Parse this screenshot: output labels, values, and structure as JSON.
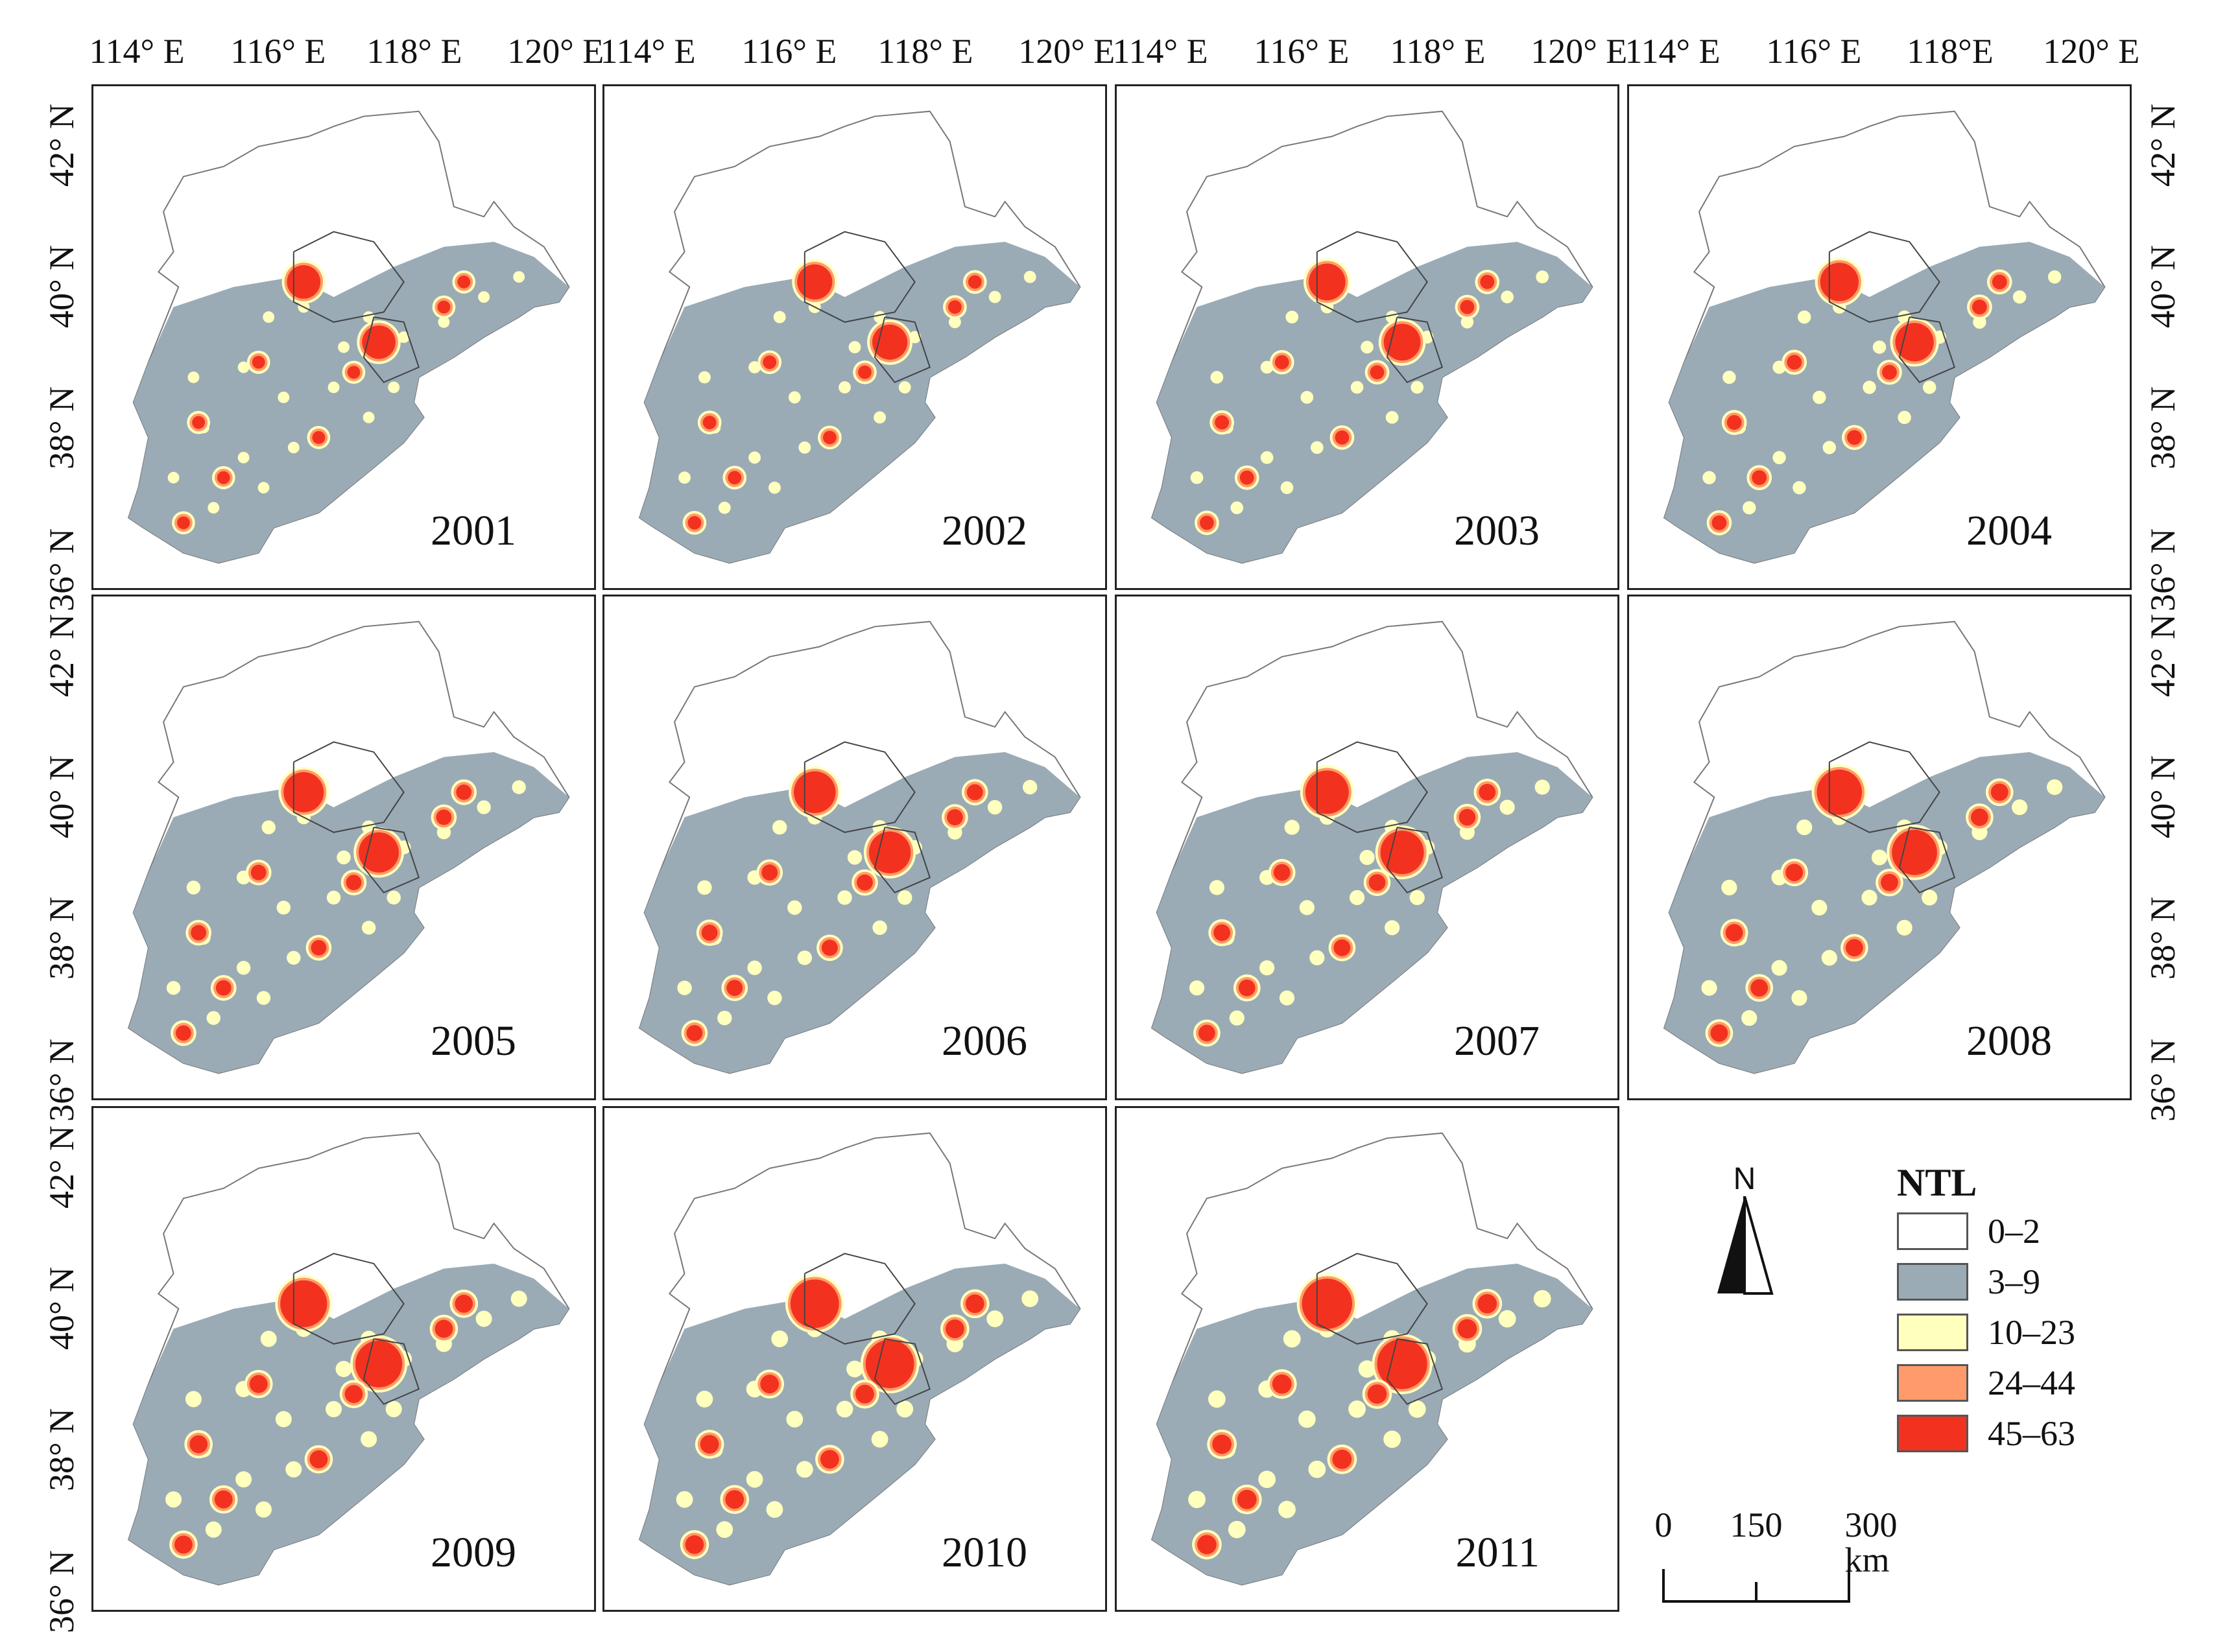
{
  "lon_ticks": [
    [
      "114° E",
      "116° E",
      "118° E",
      "120° E"
    ],
    [
      "114° E",
      "116° E",
      "118° E",
      "120° E"
    ],
    [
      "114° E",
      "116° E",
      "118° E",
      "120° E"
    ],
    [
      "114° E",
      "116° E",
      "118°E",
      "120° E"
    ]
  ],
  "lat_ticks": [
    "42° N",
    "40° N",
    "38° N",
    "36° N"
  ],
  "panels": [
    {
      "year": "2001"
    },
    {
      "year": "2002"
    },
    {
      "year": "2003"
    },
    {
      "year": "2004"
    },
    {
      "year": "2005"
    },
    {
      "year": "2006"
    },
    {
      "year": "2007"
    },
    {
      "year": "2008"
    },
    {
      "year": "2009"
    },
    {
      "year": "2010"
    },
    {
      "year": "2011"
    }
  ],
  "legend": {
    "title": "NTL",
    "items": [
      {
        "label": "0–2",
        "color": "#ffffff"
      },
      {
        "label": "3–9",
        "color": "#9aabb6"
      },
      {
        "label": "10–23",
        "color": "#ffffbe"
      },
      {
        "label": "24–44",
        "color": "#ff9b6a"
      },
      {
        "label": "45–63",
        "color": "#f2321f"
      }
    ]
  },
  "north_arrow": {
    "label": "N",
    "icon": "north-arrow-icon"
  },
  "scale_bar": {
    "labels": [
      "0",
      "150",
      "300 km"
    ]
  }
}
